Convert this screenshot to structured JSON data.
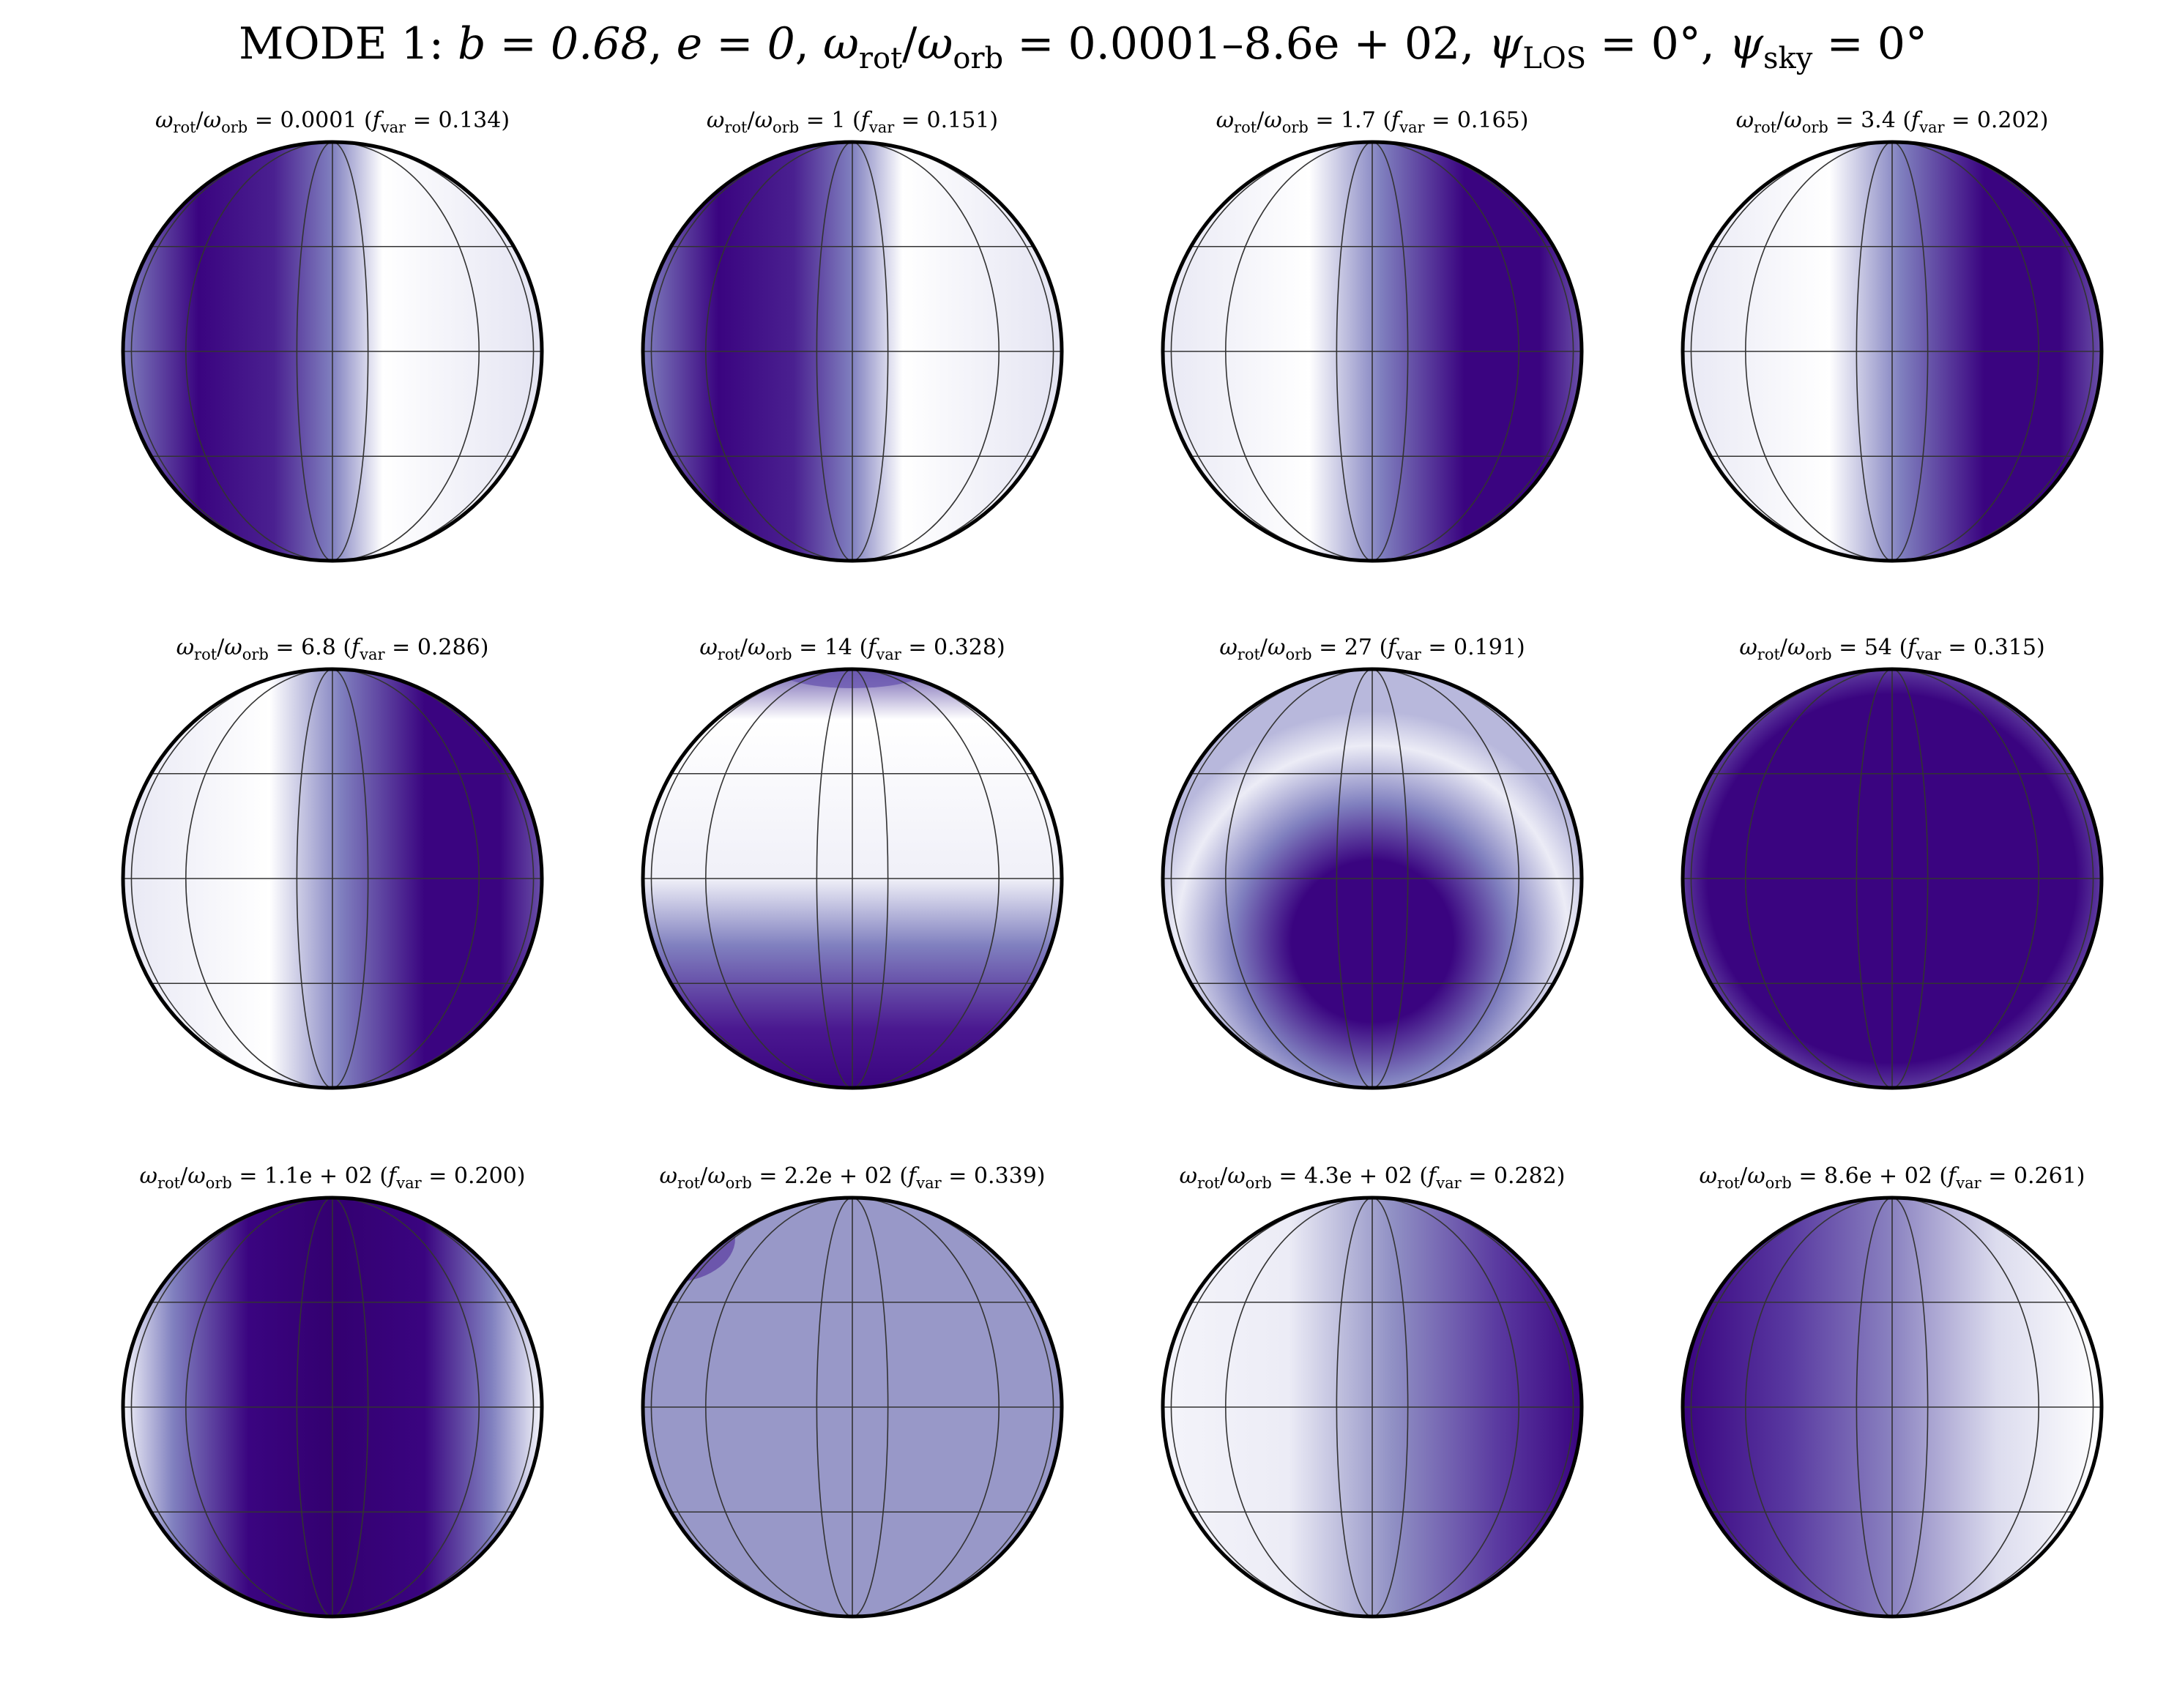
{
  "title": {
    "mode": "MODE 1:",
    "b": "b = 0.68",
    "e": "e = 0",
    "omega_ratio": "0.0001–8.6e + 02",
    "psi_los": "0°",
    "psi_sky": "0°"
  },
  "colors": {
    "light": "#ffffff",
    "dark": "#3a0480",
    "grid": "#333333",
    "outline": "#000000"
  },
  "panels": [
    {
      "ratio": "0.0001",
      "fvar": "0.134",
      "shading": "dark-left"
    },
    {
      "ratio": "1",
      "fvar": "0.151",
      "shading": "dark-left"
    },
    {
      "ratio": "1.7",
      "fvar": "0.165",
      "shading": "dark-right"
    },
    {
      "ratio": "3.4",
      "fvar": "0.202",
      "shading": "dark-right"
    },
    {
      "ratio": "6.8",
      "fvar": "0.286",
      "shading": "dark-right"
    },
    {
      "ratio": "14",
      "fvar": "0.328",
      "shading": "dark-bottom"
    },
    {
      "ratio": "27",
      "fvar": "0.191",
      "shading": "dark-lower-center"
    },
    {
      "ratio": "54",
      "fvar": "0.315",
      "shading": "dark-full"
    },
    {
      "ratio": "1.1e + 02",
      "fvar": "0.200",
      "shading": "dark-center-band"
    },
    {
      "ratio": "2.2e + 02",
      "fvar": "0.339",
      "shading": "uniform-medium"
    },
    {
      "ratio": "4.3e + 02",
      "fvar": "0.282",
      "shading": "dark-right-edge"
    },
    {
      "ratio": "8.6e + 02",
      "fvar": "0.261",
      "shading": "dark-left-gradient"
    }
  ]
}
